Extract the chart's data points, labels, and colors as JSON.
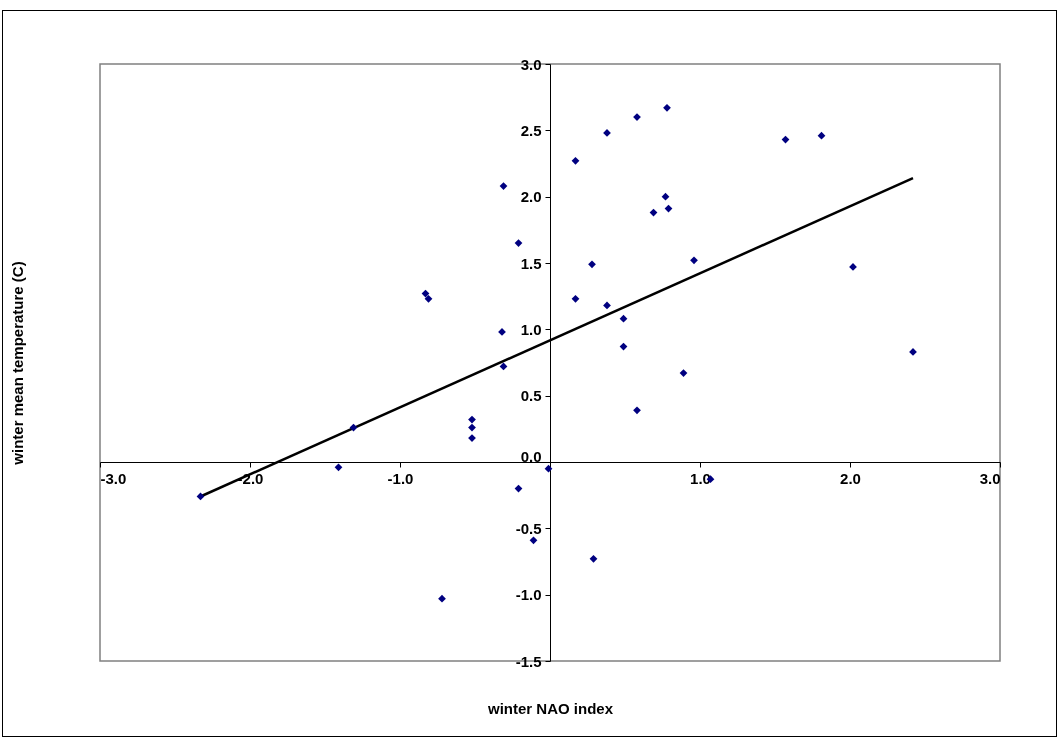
{
  "chart_data": {
    "type": "scatter",
    "xlabel": "winter NAO index",
    "ylabel": "winter mean temperature (C)",
    "marker": "diamond",
    "grid": false,
    "xlim": [
      -3,
      3
    ],
    "ylim": [
      -1.5,
      3
    ],
    "xticks": [
      {
        "value": -3,
        "label": "-3.0"
      },
      {
        "value": -2,
        "label": "-2.0"
      },
      {
        "value": -1,
        "label": "-1.0"
      },
      {
        "value": 0,
        "label": null
      },
      {
        "value": 1,
        "label": "1.0"
      },
      {
        "value": 2,
        "label": "2.0"
      },
      {
        "value": 3,
        "label": "3.0"
      }
    ],
    "yticks": [
      {
        "value": -1.5,
        "label": "-1.5"
      },
      {
        "value": -1,
        "label": "-1.0"
      },
      {
        "value": -0.5,
        "label": "-0.5"
      },
      {
        "value": 0,
        "label": "0.0"
      },
      {
        "value": 0.5,
        "label": "0.5"
      },
      {
        "value": 1,
        "label": "1.0"
      },
      {
        "value": 1.5,
        "label": "1.5"
      },
      {
        "value": 2,
        "label": "2.0"
      },
      {
        "value": 2.5,
        "label": "2.5"
      },
      {
        "value": 3,
        "label": "3.0"
      }
    ],
    "series": [
      {
        "color": "#000080",
        "x": [
          -2.33,
          -1.41,
          -1.31,
          -0.83,
          -0.81,
          -0.72,
          -0.52,
          -0.52,
          -0.52,
          -0.32,
          -0.31,
          -0.31,
          -0.21,
          -0.21,
          -0.11,
          -0.01,
          0.17,
          0.17,
          0.28,
          0.29,
          0.38,
          0.38,
          0.49,
          0.49,
          0.58,
          0.58,
          0.69,
          0.77,
          0.79,
          0.78,
          0.89,
          0.96,
          1.07,
          1.57,
          1.81,
          2.02,
          2.42
        ],
        "values": [
          -0.26,
          -0.04,
          0.26,
          1.27,
          1.23,
          -1.03,
          0.32,
          0.26,
          0.18,
          0.98,
          0.72,
          2.08,
          1.65,
          -0.2,
          -0.59,
          -0.05,
          2.27,
          1.23,
          1.49,
          -0.73,
          2.48,
          1.18,
          1.08,
          0.87,
          2.6,
          0.39,
          1.88,
          2,
          1.91,
          2.67,
          0.67,
          1.52,
          -0.13,
          2.43,
          2.46,
          1.47,
          0.83
        ]
      },
      {
        "type": "line",
        "marker": "none",
        "color": "#000000",
        "x": [
          -2.33,
          2.42
        ],
        "values": [
          -0.26,
          2.14
        ]
      }
    ]
  }
}
